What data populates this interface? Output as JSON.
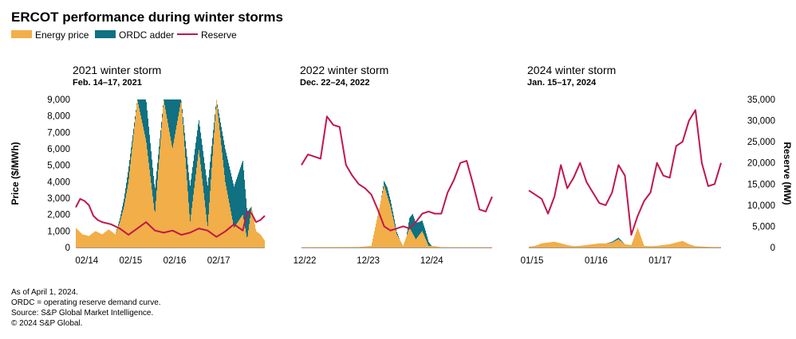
{
  "title": "ERCOT performance during winter storms",
  "colors": {
    "energy_price": "#F2AE48",
    "ordc_adder": "#0F7182",
    "reserve": "#C0174B",
    "baseline": "#999999"
  },
  "legend": [
    {
      "label": "Energy price",
      "color_key": "energy_price",
      "kind": "box"
    },
    {
      "label": "ORDC adder",
      "color_key": "ordc_adder",
      "kind": "box"
    },
    {
      "label": "Reserve",
      "color_key": "reserve",
      "kind": "line"
    }
  ],
  "axes": {
    "left_label": "Price ($/MWh)",
    "right_label": "Reserve (MW)",
    "left_ticks": [
      "9,000",
      "8,000",
      "7,000",
      "6,000",
      "5,000",
      "4,000",
      "3,000",
      "2,000",
      "1,000",
      "0"
    ],
    "right_ticks": [
      "35,000",
      "30,000",
      "25,000",
      "20,000",
      "15,000",
      "10,000",
      "5,000",
      "0"
    ]
  },
  "notes": [
    "As of April 1, 2024.",
    "ORDC = operating reserve demand curve.",
    "Source: S&P Global Market Intelligence.",
    "© 2024 S&P Global."
  ],
  "chart_data": [
    {
      "type": "area",
      "title": "2021 winter storm",
      "subtitle": "Feb. 14–17, 2021",
      "ylabel": "Price ($/MWh)",
      "y2label": "Reserve (MW)",
      "ylim": [
        0,
        9000
      ],
      "y2lim": [
        0,
        35000
      ],
      "xlim": [
        0,
        4.3
      ],
      "xticks": [
        {
          "x": 0.25,
          "label": "02/14"
        },
        {
          "x": 1.25,
          "label": "02/15"
        },
        {
          "x": 2.25,
          "label": "02/16"
        },
        {
          "x": 3.25,
          "label": "02/17"
        }
      ],
      "series": [
        {
          "name": "Energy price",
          "x": [
            0,
            0.15,
            0.3,
            0.45,
            0.6,
            0.75,
            0.9,
            1.0,
            1.1,
            1.2,
            1.4,
            1.6,
            1.8,
            2.0,
            2.2,
            2.4,
            2.6,
            2.8,
            3.0,
            3.2,
            3.4,
            3.6,
            3.8,
            3.9,
            4.0,
            4.1,
            4.2,
            4.3
          ],
          "values": [
            1200,
            800,
            700,
            1000,
            800,
            1100,
            800,
            1500,
            2500,
            4000,
            9000,
            6500,
            2000,
            9000,
            6000,
            9000,
            1500,
            6000,
            1200,
            9000,
            4000,
            1200,
            2000,
            500,
            2500,
            1000,
            800,
            400
          ]
        },
        {
          "name": "ORDC adder",
          "x": [
            0,
            0.9,
            1.0,
            1.2,
            1.4,
            1.6,
            1.8,
            2.0,
            2.2,
            2.4,
            2.6,
            2.8,
            3.0,
            3.2,
            3.4,
            3.6,
            3.8,
            4.0,
            4.3
          ],
          "values": [
            0,
            0,
            200,
            800,
            0,
            2500,
            1500,
            0,
            3000,
            0,
            2200,
            1800,
            2500,
            0,
            2000,
            2500,
            3300,
            0,
            0
          ]
        },
        {
          "name": "Reserve",
          "x": [
            0,
            0.1,
            0.2,
            0.3,
            0.4,
            0.5,
            0.6,
            0.8,
            1.0,
            1.2,
            1.4,
            1.6,
            1.8,
            2.0,
            2.2,
            2.4,
            2.6,
            2.8,
            3.0,
            3.2,
            3.4,
            3.6,
            3.8,
            3.9,
            4.0,
            4.1,
            4.2,
            4.3
          ],
          "values": [
            9500,
            11500,
            11000,
            10000,
            7500,
            6500,
            6000,
            5500,
            4500,
            3000,
            4500,
            6000,
            4000,
            3500,
            4000,
            3000,
            3500,
            4500,
            4000,
            2500,
            3800,
            5500,
            4000,
            8500,
            8000,
            6000,
            6500,
            7500
          ]
        }
      ]
    },
    {
      "type": "area",
      "title": "2022 winter storm",
      "subtitle": "Dec. 22–24, 2022",
      "ylim": [
        0,
        9000
      ],
      "y2lim": [
        0,
        35000
      ],
      "xlim": [
        0,
        3.0
      ],
      "xticks": [
        {
          "x": 0.05,
          "label": "12/22"
        },
        {
          "x": 1.05,
          "label": "12/23"
        },
        {
          "x": 2.05,
          "label": "12/24"
        }
      ],
      "series": [
        {
          "name": "Energy price",
          "x": [
            0,
            0.9,
            1.1,
            1.3,
            1.4,
            1.5,
            1.6,
            1.7,
            1.8,
            1.9,
            2.0,
            2.1,
            2.2,
            3.0
          ],
          "values": [
            20,
            30,
            100,
            3800,
            2500,
            800,
            100,
            1200,
            500,
            1000,
            100,
            80,
            20,
            20
          ]
        },
        {
          "name": "ORDC adder",
          "x": [
            0,
            1.25,
            1.35,
            1.45,
            1.55,
            1.65,
            1.75,
            1.85,
            1.95,
            2.05,
            3.0
          ],
          "values": [
            0,
            0,
            500,
            300,
            0,
            0,
            1200,
            800,
            500,
            0,
            0
          ]
        },
        {
          "name": "Reserve",
          "x": [
            0,
            0.1,
            0.2,
            0.3,
            0.4,
            0.5,
            0.6,
            0.7,
            0.8,
            0.9,
            1.0,
            1.1,
            1.2,
            1.3,
            1.4,
            1.5,
            1.6,
            1.7,
            1.8,
            1.9,
            2.0,
            2.1,
            2.2,
            2.3,
            2.4,
            2.5,
            2.6,
            2.7,
            2.8,
            2.9,
            3.0
          ],
          "values": [
            19500,
            22000,
            21500,
            21000,
            31000,
            29000,
            28500,
            19500,
            17000,
            15000,
            14000,
            12500,
            9000,
            5000,
            4000,
            4500,
            5000,
            4500,
            6000,
            8000,
            8500,
            8000,
            8000,
            13000,
            16000,
            20000,
            20500,
            15000,
            9000,
            8500,
            12000
          ]
        }
      ]
    },
    {
      "type": "area",
      "title": "2024 winter storm",
      "subtitle": "Jan. 15–17, 2024",
      "ylim": [
        0,
        9000
      ],
      "y2lim": [
        0,
        35000
      ],
      "xlim": [
        0,
        3.0
      ],
      "xticks": [
        {
          "x": 0.05,
          "label": "01/15"
        },
        {
          "x": 1.05,
          "label": "01/16"
        },
        {
          "x": 2.05,
          "label": "01/17"
        }
      ],
      "series": [
        {
          "name": "Energy price",
          "x": [
            0,
            0.1,
            0.2,
            0.3,
            0.4,
            0.5,
            0.6,
            0.7,
            0.8,
            0.9,
            1.0,
            1.1,
            1.2,
            1.3,
            1.4,
            1.5,
            1.6,
            1.7,
            1.8,
            1.9,
            2.0,
            2.1,
            2.2,
            2.3,
            2.4,
            2.5,
            2.6,
            2.7,
            2.8,
            2.9,
            3.0
          ],
          "values": [
            50,
            100,
            250,
            300,
            350,
            250,
            150,
            80,
            100,
            150,
            200,
            250,
            250,
            300,
            500,
            200,
            150,
            1200,
            100,
            80,
            100,
            150,
            200,
            300,
            400,
            200,
            80,
            60,
            40,
            30,
            30
          ]
        },
        {
          "name": "ORDC adder",
          "x": [
            0,
            1.2,
            1.3,
            1.4,
            1.5,
            3.0
          ],
          "values": [
            0,
            0,
            50,
            100,
            0,
            0
          ]
        },
        {
          "name": "Reserve",
          "x": [
            0,
            0.1,
            0.2,
            0.3,
            0.4,
            0.5,
            0.6,
            0.7,
            0.8,
            0.9,
            1.0,
            1.1,
            1.2,
            1.3,
            1.4,
            1.5,
            1.6,
            1.7,
            1.8,
            1.9,
            2.0,
            2.1,
            2.2,
            2.3,
            2.4,
            2.5,
            2.6,
            2.7,
            2.8,
            2.9,
            3.0
          ],
          "values": [
            13500,
            12500,
            11500,
            8000,
            12000,
            19500,
            14000,
            16500,
            20000,
            15500,
            13000,
            10500,
            10000,
            13000,
            19500,
            17000,
            3000,
            7500,
            11000,
            13000,
            20000,
            17000,
            16500,
            24000,
            25000,
            30000,
            32500,
            20000,
            14500,
            15000,
            20000
          ]
        }
      ]
    }
  ]
}
